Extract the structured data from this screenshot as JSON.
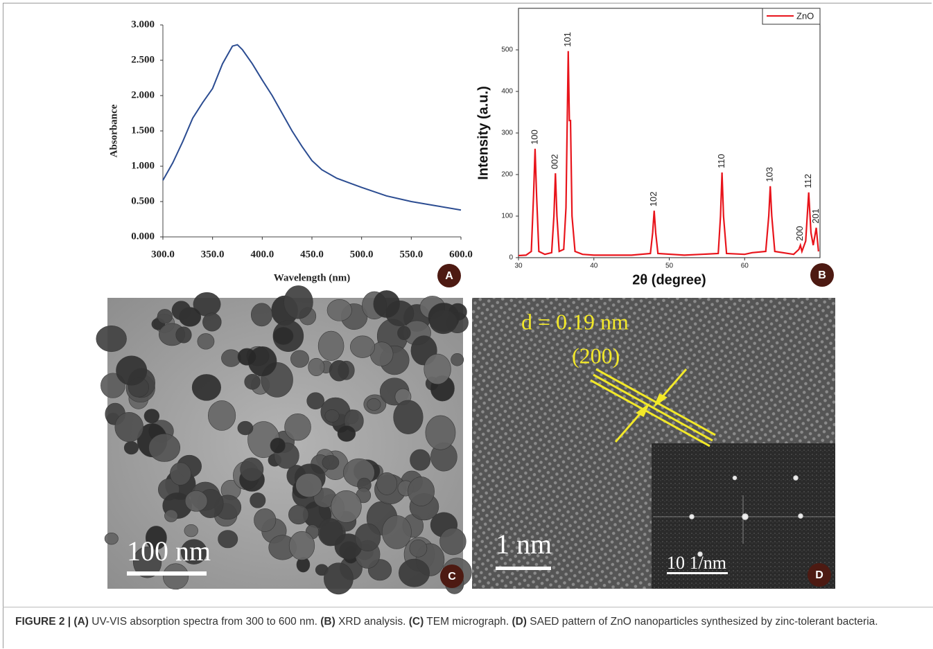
{
  "chart_data": [
    {
      "type": "line",
      "color": "#2b4c91",
      "x_label": "Wavelength (nm)",
      "y_label": "Absorbance",
      "x": [
        300,
        310,
        320,
        330,
        340,
        350,
        360,
        370,
        375,
        380,
        390,
        400,
        410,
        420,
        430,
        440,
        450,
        460,
        475,
        500,
        525,
        550,
        575,
        600
      ],
      "values": [
        0.8,
        1.05,
        1.35,
        1.68,
        1.9,
        2.1,
        2.45,
        2.7,
        2.72,
        2.65,
        2.45,
        2.22,
        2.0,
        1.75,
        1.5,
        1.28,
        1.08,
        0.95,
        0.83,
        0.7,
        0.58,
        0.5,
        0.44,
        0.38
      ],
      "xlim": [
        300,
        600
      ],
      "ylim": [
        0,
        3
      ],
      "xticks": [
        {
          "value": 300,
          "label": "300.0"
        },
        {
          "value": 350,
          "label": "350.0"
        },
        {
          "value": 400,
          "label": "400.0"
        },
        {
          "value": 450,
          "label": "450.0"
        },
        {
          "value": 500,
          "label": "500.0"
        },
        {
          "value": 550,
          "label": "550.0"
        },
        {
          "value": 600,
          "label": "600.0"
        }
      ],
      "yticks": [
        {
          "value": 0,
          "label": "0.000"
        },
        {
          "value": 0.5,
          "label": "0.500"
        },
        {
          "value": 1,
          "label": "1.000"
        },
        {
          "value": 1.5,
          "label": "1.500"
        },
        {
          "value": 2,
          "label": "2.000"
        },
        {
          "value": 2.5,
          "label": "2.500"
        },
        {
          "value": 3,
          "label": "3.000"
        }
      ],
      "badge": "A"
    },
    {
      "type": "line",
      "x_label": "2θ  (degree)",
      "y_label": "Intensity (a.u.)",
      "x": [
        30,
        31,
        31.7,
        32.0,
        32.2,
        32.4,
        32.7,
        33.5,
        34.4,
        34.7,
        34.9,
        35.1,
        35.4,
        36.0,
        36.3,
        36.6,
        36.75,
        36.9,
        37.1,
        37.5,
        38.5,
        40,
        45,
        47.5,
        47.8,
        48.0,
        48.2,
        48.5,
        52,
        56.5,
        56.8,
        57.0,
        57.2,
        57.6,
        60,
        61,
        62.8,
        63.2,
        63.4,
        63.6,
        64.0,
        66.5,
        67.2,
        67.4,
        67.6,
        68.1,
        68.5,
        68.8,
        69.1,
        69.5,
        69.8
      ],
      "series": [
        {
          "name": "ZnO",
          "color": "#e8141b",
          "values": [
            5,
            6,
            15,
            150,
            262,
            150,
            15,
            8,
            12,
            100,
            203,
            100,
            15,
            20,
            120,
            497,
            330,
            330,
            100,
            15,
            8,
            6,
            6,
            10,
            60,
            113,
            60,
            10,
            6,
            10,
            100,
            205,
            100,
            10,
            8,
            12,
            15,
            100,
            172,
            100,
            15,
            8,
            20,
            30,
            15,
            40,
            157,
            60,
            30,
            72,
            15
          ]
        }
      ],
      "xlim": [
        30,
        70
      ],
      "ylim": [
        0,
        600
      ],
      "xticks": [
        30,
        40,
        50,
        60
      ],
      "yticks": [
        0,
        100,
        200,
        300,
        400,
        500
      ],
      "legend": "upper right",
      "annotations": [
        {
          "text": "100",
          "x": 32.2,
          "y": 262
        },
        {
          "text": "002",
          "x": 34.9,
          "y": 203
        },
        {
          "text": "101",
          "x": 36.6,
          "y": 497
        },
        {
          "text": "102",
          "x": 48.0,
          "y": 113
        },
        {
          "text": "110",
          "x": 57.0,
          "y": 205
        },
        {
          "text": "103",
          "x": 63.4,
          "y": 172
        },
        {
          "text": "200",
          "x": 67.4,
          "y": 30
        },
        {
          "text": "112",
          "x": 68.5,
          "y": 157
        },
        {
          "text": "201",
          "x": 69.5,
          "y": 72
        }
      ],
      "badge": "B"
    }
  ],
  "panel_c": {
    "badge": "C",
    "scale_bar": "100 nm"
  },
  "panel_d": {
    "badge": "D",
    "d_spacing": "d = 0.19 nm",
    "plane": "(200)",
    "scale_bar": "1 nm",
    "inset_scale_bar": "10 1/nm"
  },
  "caption": [
    {
      "text": "FIGURE 2 | (A)",
      "bold": true
    },
    {
      "text": " UV-VIS absorption spectra from 300 to 600 nm. ",
      "bold": false
    },
    {
      "text": "(B)",
      "bold": true
    },
    {
      "text": " XRD analysis. ",
      "bold": false
    },
    {
      "text": "(C)",
      "bold": true
    },
    {
      "text": " TEM micrograph. ",
      "bold": false
    },
    {
      "text": "(D)",
      "bold": true
    },
    {
      "text": " SAED pattern of ZnO nanoparticles synthesized by zinc-tolerant bacteria.",
      "bold": false
    }
  ]
}
